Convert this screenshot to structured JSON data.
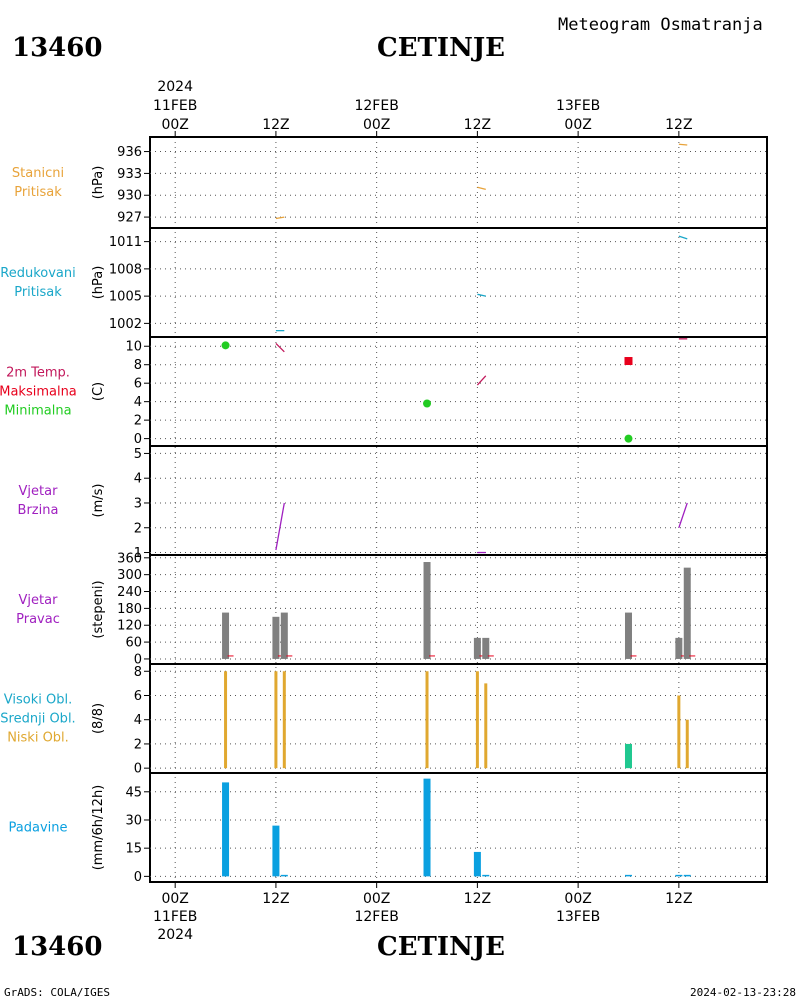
{
  "header": {
    "station_id": "13460",
    "station_name": "CETINJE",
    "product_title": "Meteogram Osmatranja"
  },
  "footer": {
    "left": "GrADS: COLA/IGES",
    "right": "2024-02-13-23:28"
  },
  "time_axis": {
    "year": "2024",
    "ticks": [
      {
        "t": 0,
        "hour": "00Z",
        "date": "11FEB",
        "year": "2024"
      },
      {
        "t": 12,
        "hour": "12Z",
        "date": "",
        "year": ""
      },
      {
        "t": 24,
        "hour": "00Z",
        "date": "12FEB",
        "year": ""
      },
      {
        "t": 36,
        "hour": "12Z",
        "date": "",
        "year": ""
      },
      {
        "t": 48,
        "hour": "00Z",
        "date": "13FEB",
        "year": ""
      },
      {
        "t": 60,
        "hour": "12Z",
        "date": "",
        "year": ""
      }
    ],
    "range_hours": [
      -3,
      70.5
    ]
  },
  "colors": {
    "stanicni": "#e8a33a",
    "redukovani": "#1aa7c9",
    "tmax": "#e8001c",
    "tmin": "#22cc22",
    "tline": "#c2185b",
    "wind": "#a020c0",
    "dir_bar": "#808080",
    "dir_small": "#e8001c",
    "oblacnost_niski": "#e0a830",
    "oblacnost_srednji": "#20c890",
    "padavine": "#0aa0e0"
  },
  "chart_data": [
    {
      "type": "line",
      "panel": "stanicni_pritisak",
      "labels": [
        "Stanicni",
        "Pritisak"
      ],
      "ylabel": "(hPa)",
      "ylim": [
        925.5,
        938.0
      ],
      "yticks": [
        927,
        930,
        933,
        936
      ],
      "series": [
        {
          "points": [
            [
              12.0,
              926.8
            ],
            [
              13.0,
              927.0
            ]
          ]
        },
        {
          "points": [
            [
              36.0,
              931.1
            ],
            [
              37.0,
              930.8
            ]
          ]
        },
        {
          "points": [
            [
              60.0,
              937.0
            ],
            [
              61.0,
              936.9
            ]
          ]
        }
      ]
    },
    {
      "type": "line",
      "panel": "redukovani_pritisak",
      "labels": [
        "Redukovani",
        "Pritisak"
      ],
      "ylabel": "(hPa)",
      "ylim": [
        1000.5,
        1012.5
      ],
      "yticks": [
        1002,
        1005,
        1008,
        1011
      ],
      "series": [
        {
          "points": [
            [
              12.0,
              1001.2
            ],
            [
              13.0,
              1001.2
            ]
          ]
        },
        {
          "points": [
            [
              36.0,
              1005.2
            ],
            [
              37.0,
              1005.0
            ]
          ]
        },
        {
          "points": [
            [
              60.0,
              1011.6
            ],
            [
              61.0,
              1011.3
            ]
          ]
        }
      ]
    },
    {
      "type": "scatter",
      "panel": "temperatura_2m",
      "labels": [
        "2m Temp.",
        "Maksimalna",
        "Minimalna"
      ],
      "ylabel": "(C)",
      "ylim": [
        -0.8,
        11.0
      ],
      "yticks": [
        0,
        2,
        4,
        6,
        8,
        10
      ],
      "temp_lines": [
        {
          "points": [
            [
              12.0,
              10.3
            ],
            [
              13.0,
              9.4
            ]
          ]
        },
        {
          "points": [
            [
              36.0,
              5.8
            ],
            [
              37.0,
              6.8
            ]
          ]
        },
        {
          "points": [
            [
              60.0,
              10.8
            ],
            [
              61.0,
              10.8
            ]
          ]
        }
      ],
      "maximum": [
        [
          54.0,
          8.4
        ]
      ],
      "minimum": [
        [
          6.0,
          10.1
        ],
        [
          30.0,
          3.8
        ],
        [
          54.0,
          0.0
        ]
      ]
    },
    {
      "type": "line",
      "panel": "vjetar_brzina",
      "labels": [
        "Vjetar",
        "Brzina"
      ],
      "ylabel": "(m/s)",
      "ylim": [
        0.9,
        5.3
      ],
      "yticks": [
        1,
        2,
        3,
        4,
        5
      ],
      "series": [
        {
          "points": [
            [
              12.0,
              1.1
            ],
            [
              13.0,
              3.0
            ]
          ]
        },
        {
          "points": [
            [
              36.0,
              1.0
            ],
            [
              37.0,
              1.0
            ]
          ]
        },
        {
          "points": [
            [
              60.0,
              2.0
            ],
            [
              61.0,
              3.0
            ]
          ]
        }
      ]
    },
    {
      "type": "bar",
      "panel": "vjetar_pravac",
      "labels": [
        "Vjetar",
        "Pravac"
      ],
      "ylabel": "(stepeni)",
      "ylim": [
        -18,
        370
      ],
      "yticks": [
        0,
        60,
        120,
        180,
        240,
        300,
        360
      ],
      "ytick_labels": [
        "0",
        "60",
        "120",
        "180",
        "240",
        "300",
        "360"
      ],
      "x": [
        6,
        12,
        13,
        30,
        36,
        37,
        54,
        60,
        61
      ],
      "values": [
        165,
        150,
        165,
        345,
        75,
        75,
        165,
        75,
        325
      ]
    },
    {
      "type": "bar",
      "panel": "oblacnost",
      "labels": [
        "Visoki Obl.",
        "Srednji Obl.",
        "Niski Obl."
      ],
      "ylabel": "(8/8)",
      "ylim": [
        -0.4,
        8.6
      ],
      "yticks": [
        0,
        2,
        4,
        6,
        8
      ],
      "series": [
        {
          "name": "Niski Obl.",
          "x": [
            6,
            12,
            13,
            30,
            36,
            37,
            60,
            61
          ],
          "values": [
            8,
            8,
            8,
            8,
            8,
            7,
            6,
            4
          ]
        },
        {
          "name": "Srednji Obl.",
          "x": [
            54
          ],
          "values": [
            2
          ]
        }
      ]
    },
    {
      "type": "bar",
      "panel": "padavine",
      "labels": [
        "Padavine"
      ],
      "ylabel": "(mm/6h/12h)",
      "ylim": [
        -3,
        55
      ],
      "yticks": [
        0,
        15,
        30,
        45
      ],
      "x": [
        6,
        12,
        13,
        30,
        36,
        37,
        54,
        60,
        61
      ],
      "values": [
        50,
        27,
        0.3,
        52,
        13,
        0.5,
        0.3,
        0.3,
        0.3
      ]
    }
  ]
}
